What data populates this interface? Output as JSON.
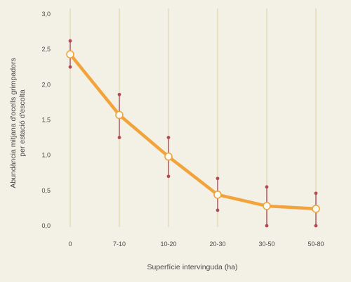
{
  "chart_data": {
    "type": "line",
    "categories": [
      "0",
      "7-10",
      "10-20",
      "20-30",
      "30-50",
      "50-80"
    ],
    "series": [
      {
        "values": [
          2.43,
          1.57,
          0.98,
          0.44,
          0.28,
          0.24
        ],
        "error_low": [
          2.25,
          1.25,
          0.7,
          0.22,
          0.0,
          0.0
        ],
        "error_high": [
          2.62,
          1.86,
          1.25,
          0.67,
          0.55,
          0.46
        ]
      }
    ],
    "ylim": [
      0,
      3
    ],
    "y_ticks": [
      "0,0",
      "0,5",
      "1,0",
      "1,5",
      "2,0",
      "2,5",
      "3,0"
    ],
    "ylabel_lines": [
      "Abundància mitjana d'ocells grimpadors",
      "per estació d'escolta"
    ],
    "xlabel": "Superfície intervinguda (ha)",
    "grid": "vertical",
    "colors": {
      "background": "#f3f0e6",
      "gridline": "#d9d8a6",
      "line": "#f2a33a",
      "error_bar": "#b24b55",
      "marker_fill": "#ffffff",
      "marker_edge": "#f2a33a",
      "text": "#4a4a4a"
    }
  }
}
